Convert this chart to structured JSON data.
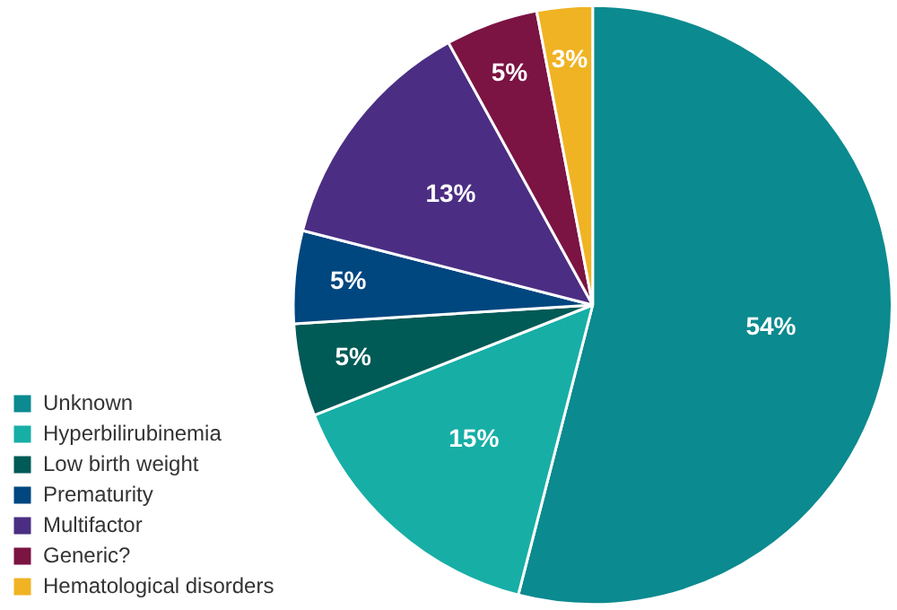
{
  "chart_data": {
    "type": "pie",
    "categories": [
      "Unknown",
      "Hyperbilirubinemia",
      "Low birth weight",
      "Prematurity",
      "Multifactor",
      "Generic?",
      "Hematological disorders"
    ],
    "values": [
      54,
      15,
      5,
      5,
      13,
      5,
      3
    ],
    "colors": [
      "#0b8a8f",
      "#17aea6",
      "#005a56",
      "#00467f",
      "#4b2e83",
      "#7b1343",
      "#f0b323"
    ],
    "value_labels": [
      "54%",
      "15%",
      "5%",
      "5%",
      "13%",
      "5%",
      "3%"
    ],
    "legend": "bottom left"
  }
}
